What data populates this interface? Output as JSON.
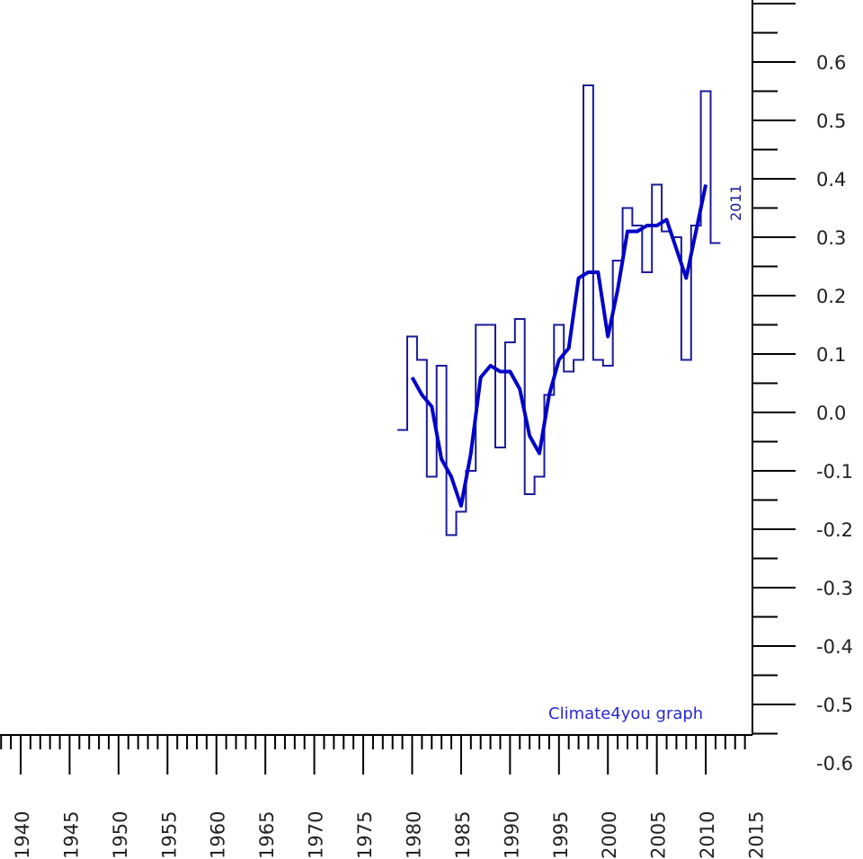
{
  "chart_data": {
    "type": "line",
    "title": "",
    "xlabel": "",
    "ylabel": "",
    "xlim": [
      1938,
      2016
    ],
    "ylim": [
      -0.65,
      0.7
    ],
    "y_ticks": [
      "0.6",
      "0.5",
      "0.4",
      "0.3",
      "0.2",
      "0.1",
      "0.0",
      "-0.1",
      "-0.2",
      "-0.3",
      "-0.4",
      "-0.5",
      "-0.6"
    ],
    "y_tick_values": [
      0.6,
      0.5,
      0.4,
      0.3,
      0.2,
      0.1,
      0.0,
      -0.1,
      -0.2,
      -0.3,
      -0.4,
      -0.5,
      -0.6
    ],
    "x_ticks": [
      "1940",
      "1945",
      "1950",
      "1955",
      "1960",
      "1965",
      "1970",
      "1975",
      "1980",
      "1985",
      "1990",
      "1995",
      "2000",
      "2005",
      "2010",
      "2015"
    ],
    "x_tick_values": [
      1940,
      1945,
      1950,
      1955,
      1960,
      1965,
      1970,
      1975,
      1980,
      1985,
      1990,
      1995,
      2000,
      2005,
      2010,
      2015
    ],
    "grid": false,
    "series": [
      {
        "style": "step",
        "color": "#1a1a99",
        "x": [
          1979,
          1980,
          1981,
          1982,
          1983,
          1984,
          1985,
          1986,
          1987,
          1988,
          1989,
          1990,
          1991,
          1992,
          1993,
          1994,
          1995,
          1996,
          1997,
          1998,
          1999,
          2000,
          2001,
          2002,
          2003,
          2004,
          2005,
          2006,
          2007,
          2008,
          2009,
          2010,
          2011
        ],
        "values": [
          -0.03,
          0.13,
          0.09,
          -0.11,
          0.08,
          -0.21,
          -0.17,
          -0.1,
          0.15,
          0.15,
          -0.06,
          0.12,
          0.16,
          -0.14,
          -0.11,
          0.03,
          0.15,
          0.07,
          0.09,
          0.56,
          0.09,
          0.08,
          0.26,
          0.35,
          0.32,
          0.24,
          0.39,
          0.31,
          0.3,
          0.09,
          0.32,
          0.55,
          0.29
        ]
      },
      {
        "style": "smoothed",
        "color": "#0000c8",
        "x": [
          1980,
          1981,
          1982,
          1983,
          1984,
          1985,
          1986,
          1987,
          1988,
          1989,
          1990,
          1991,
          1992,
          1993,
          1994,
          1995,
          1996,
          1997,
          1998,
          1999,
          2000,
          2001,
          2002,
          2003,
          2004,
          2005,
          2006,
          2007,
          2008,
          2009,
          2010
        ],
        "values": [
          0.06,
          0.03,
          0.01,
          -0.08,
          -0.11,
          -0.16,
          -0.07,
          0.06,
          0.08,
          0.07,
          0.07,
          0.04,
          -0.04,
          -0.07,
          0.03,
          0.09,
          0.11,
          0.23,
          0.24,
          0.24,
          0.13,
          0.21,
          0.31,
          0.31,
          0.32,
          0.32,
          0.33,
          0.28,
          0.23,
          0.31,
          0.39
        ]
      }
    ],
    "annotations": {
      "end_label": "2011",
      "credit": "Climate4you graph"
    }
  }
}
